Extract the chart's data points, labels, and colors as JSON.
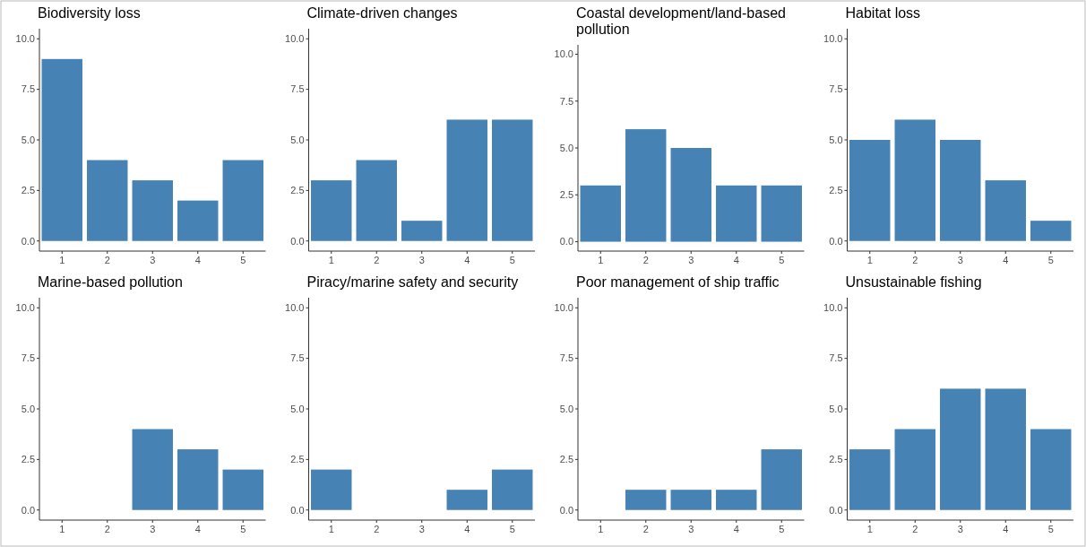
{
  "chart_data": [
    {
      "type": "bar",
      "title": "Biodiversity loss",
      "categories": [
        "1",
        "2",
        "3",
        "4",
        "5"
      ],
      "values": [
        9,
        4,
        3,
        2,
        4
      ],
      "color": "#4682b4",
      "ylim": [
        -0.5,
        10.5
      ],
      "yticks": [
        {
          "value": 0,
          "label": "0.0"
        },
        {
          "value": 2.5,
          "label": "2.5"
        },
        {
          "value": 5,
          "label": "5.0"
        },
        {
          "value": 7.5,
          "label": "7.5"
        },
        {
          "value": 10,
          "label": "10.0"
        }
      ],
      "grid": false
    },
    {
      "type": "bar",
      "title": "Climate-driven changes",
      "categories": [
        "1",
        "2",
        "3",
        "4",
        "5"
      ],
      "values": [
        3,
        4,
        1,
        6,
        6
      ],
      "color": "#4682b4",
      "ylim": [
        -0.5,
        10.5
      ],
      "yticks": [
        {
          "value": 0,
          "label": "0.0"
        },
        {
          "value": 2.5,
          "label": "2.5"
        },
        {
          "value": 5,
          "label": "5.0"
        },
        {
          "value": 7.5,
          "label": "7.5"
        },
        {
          "value": 10,
          "label": "10.0"
        }
      ],
      "grid": false
    },
    {
      "type": "bar",
      "title": "Coastal development/land-based pollution",
      "categories": [
        "1",
        "2",
        "3",
        "4",
        "5"
      ],
      "values": [
        3,
        6,
        5,
        3,
        3
      ],
      "color": "#4682b4",
      "ylim": [
        -0.5,
        10.5
      ],
      "yticks": [
        {
          "value": 0,
          "label": "0.0"
        },
        {
          "value": 2.5,
          "label": "2.5"
        },
        {
          "value": 5,
          "label": "5.0"
        },
        {
          "value": 7.5,
          "label": "7.5"
        },
        {
          "value": 10,
          "label": "10.0"
        }
      ],
      "grid": false
    },
    {
      "type": "bar",
      "title": "Habitat loss",
      "categories": [
        "1",
        "2",
        "3",
        "4",
        "5"
      ],
      "values": [
        5,
        6,
        5,
        3,
        1
      ],
      "color": "#4682b4",
      "ylim": [
        -0.5,
        10.5
      ],
      "yticks": [
        {
          "value": 0,
          "label": "0.0"
        },
        {
          "value": 2.5,
          "label": "2.5"
        },
        {
          "value": 5,
          "label": "5.0"
        },
        {
          "value": 7.5,
          "label": "7.5"
        },
        {
          "value": 10,
          "label": "10.0"
        }
      ],
      "grid": false
    },
    {
      "type": "bar",
      "title": "Marine-based pollution",
      "categories": [
        "1",
        "2",
        "3",
        "4",
        "5"
      ],
      "values": [
        0,
        0,
        4,
        3,
        2
      ],
      "color": "#4682b4",
      "ylim": [
        -0.5,
        10.5
      ],
      "yticks": [
        {
          "value": 0,
          "label": "0.0"
        },
        {
          "value": 2.5,
          "label": "2.5"
        },
        {
          "value": 5,
          "label": "5.0"
        },
        {
          "value": 7.5,
          "label": "7.5"
        },
        {
          "value": 10,
          "label": "10.0"
        }
      ],
      "grid": false
    },
    {
      "type": "bar",
      "title": "Piracy/marine safety and security",
      "categories": [
        "1",
        "2",
        "3",
        "4",
        "5"
      ],
      "values": [
        2,
        0,
        0,
        1,
        2
      ],
      "color": "#4682b4",
      "ylim": [
        -0.5,
        10.5
      ],
      "yticks": [
        {
          "value": 0,
          "label": "0.0"
        },
        {
          "value": 2.5,
          "label": "2.5"
        },
        {
          "value": 5,
          "label": "5.0"
        },
        {
          "value": 7.5,
          "label": "7.5"
        },
        {
          "value": 10,
          "label": "10.0"
        }
      ],
      "grid": false
    },
    {
      "type": "bar",
      "title": "Poor management of ship traffic",
      "categories": [
        "1",
        "2",
        "3",
        "4",
        "5"
      ],
      "values": [
        0,
        1,
        1,
        1,
        3
      ],
      "color": "#4682b4",
      "ylim": [
        -0.5,
        10.5
      ],
      "yticks": [
        {
          "value": 0,
          "label": "0.0"
        },
        {
          "value": 2.5,
          "label": "2.5"
        },
        {
          "value": 5,
          "label": "5.0"
        },
        {
          "value": 7.5,
          "label": "7.5"
        },
        {
          "value": 10,
          "label": "10.0"
        }
      ],
      "grid": false
    },
    {
      "type": "bar",
      "title": "Unsustainable fishing",
      "categories": [
        "1",
        "2",
        "3",
        "4",
        "5"
      ],
      "values": [
        3,
        4,
        6,
        6,
        4
      ],
      "color": "#4682b4",
      "ylim": [
        -0.5,
        10.5
      ],
      "yticks": [
        {
          "value": 0,
          "label": "0.0"
        },
        {
          "value": 2.5,
          "label": "2.5"
        },
        {
          "value": 5,
          "label": "5.0"
        },
        {
          "value": 7.5,
          "label": "7.5"
        },
        {
          "value": 10,
          "label": "10.0"
        }
      ],
      "grid": false
    }
  ]
}
